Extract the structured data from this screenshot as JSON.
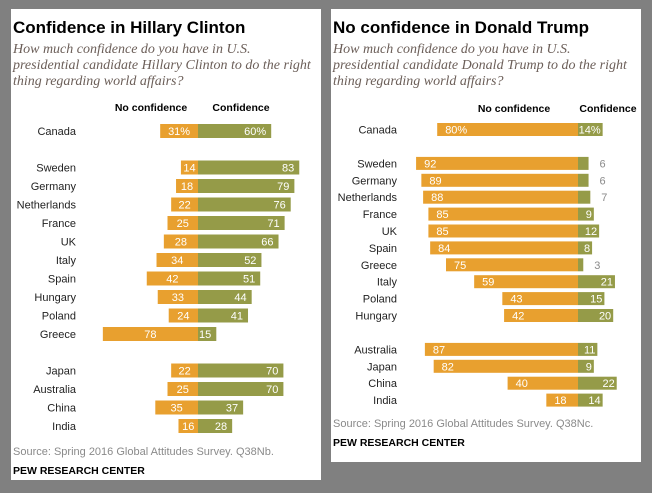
{
  "colors": {
    "no_confidence": "#e8a02f",
    "confidence": "#959b48",
    "background": "#808080",
    "outside_label": "#8a8a8a"
  },
  "chart_data": [
    {
      "type": "bar",
      "title": "Confidence in Hillary Clinton",
      "subtitle": "How much confidence do you have in U.S. presidential candidate Hillary Clinton to do the right thing regarding world affairs?",
      "orientation": "horizontal-diverging",
      "headers": {
        "left": "No confidence",
        "right": "Confidence"
      },
      "first_row_suffix": "%",
      "groups": [
        [
          {
            "country": "Canada",
            "no_confidence": 31,
            "confidence": 60
          }
        ],
        [
          {
            "country": "Sweden",
            "no_confidence": 14,
            "confidence": 83
          },
          {
            "country": "Germany",
            "no_confidence": 18,
            "confidence": 79
          },
          {
            "country": "Netherlands",
            "no_confidence": 22,
            "confidence": 76
          },
          {
            "country": "France",
            "no_confidence": 25,
            "confidence": 71
          },
          {
            "country": "UK",
            "no_confidence": 28,
            "confidence": 66
          },
          {
            "country": "Italy",
            "no_confidence": 34,
            "confidence": 52
          },
          {
            "country": "Spain",
            "no_confidence": 42,
            "confidence": 51
          },
          {
            "country": "Hungary",
            "no_confidence": 33,
            "confidence": 44
          },
          {
            "country": "Poland",
            "no_confidence": 24,
            "confidence": 41
          },
          {
            "country": "Greece",
            "no_confidence": 78,
            "confidence": 15
          }
        ],
        [
          {
            "country": "Japan",
            "no_confidence": 22,
            "confidence": 70
          },
          {
            "country": "Australia",
            "no_confidence": 25,
            "confidence": 70
          },
          {
            "country": "China",
            "no_confidence": 35,
            "confidence": 37
          },
          {
            "country": "India",
            "no_confidence": 16,
            "confidence": 28
          }
        ]
      ],
      "source": "Source: Spring 2016 Global Attitudes Survey. Q38Nb.",
      "credit": "PEW RESEARCH CENTER"
    },
    {
      "type": "bar",
      "title": "No confidence in Donald Trump",
      "subtitle": "How much confidence do you have in U.S. presidential candidate Donald Trump to do the right thing regarding world affairs?",
      "orientation": "horizontal-diverging",
      "headers": {
        "left": "No confidence",
        "right": "Confidence"
      },
      "first_row_suffix": "%",
      "groups": [
        [
          {
            "country": "Canada",
            "no_confidence": 80,
            "confidence": 14
          }
        ],
        [
          {
            "country": "Sweden",
            "no_confidence": 92,
            "confidence": 6
          },
          {
            "country": "Germany",
            "no_confidence": 89,
            "confidence": 6
          },
          {
            "country": "Netherlands",
            "no_confidence": 88,
            "confidence": 7
          },
          {
            "country": "France",
            "no_confidence": 85,
            "confidence": 9
          },
          {
            "country": "UK",
            "no_confidence": 85,
            "confidence": 12
          },
          {
            "country": "Spain",
            "no_confidence": 84,
            "confidence": 8
          },
          {
            "country": "Greece",
            "no_confidence": 75,
            "confidence": 3
          },
          {
            "country": "Italy",
            "no_confidence": 59,
            "confidence": 21
          },
          {
            "country": "Poland",
            "no_confidence": 43,
            "confidence": 15
          },
          {
            "country": "Hungary",
            "no_confidence": 42,
            "confidence": 20
          }
        ],
        [
          {
            "country": "Australia",
            "no_confidence": 87,
            "confidence": 11
          },
          {
            "country": "Japan",
            "no_confidence": 82,
            "confidence": 9
          },
          {
            "country": "China",
            "no_confidence": 40,
            "confidence": 22
          },
          {
            "country": "India",
            "no_confidence": 18,
            "confidence": 14
          }
        ]
      ],
      "source": "Source: Spring 2016 Global Attitudes Survey. Q38Nc.",
      "credit": "PEW RESEARCH CENTER"
    }
  ]
}
